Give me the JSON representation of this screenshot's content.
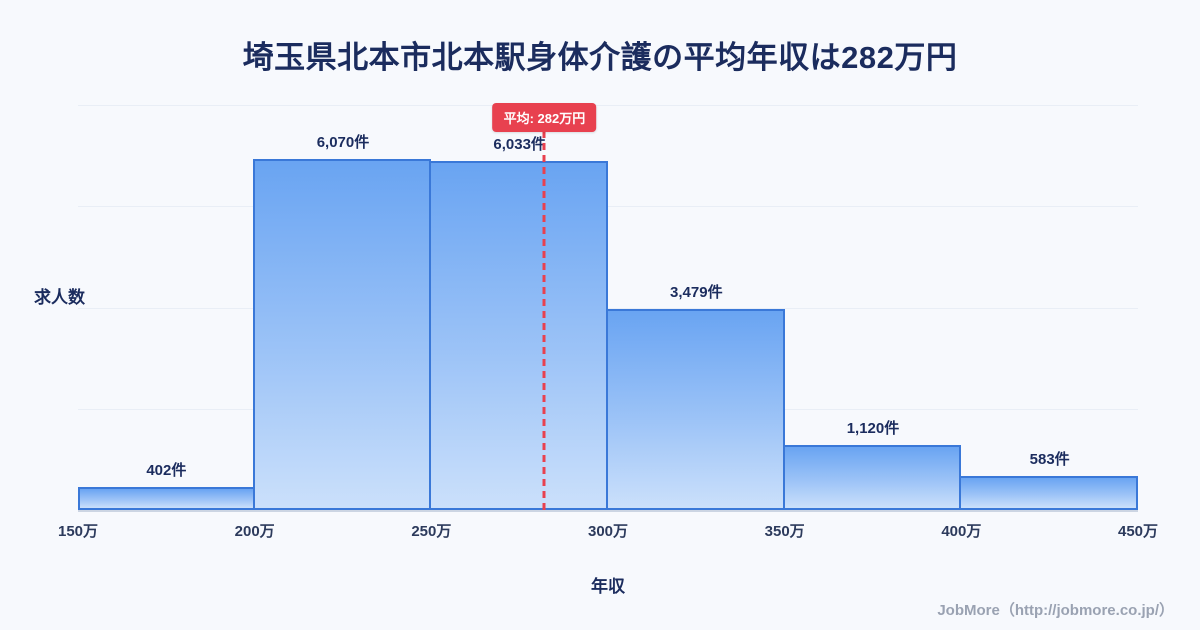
{
  "title": "埼玉県北本市北本駅身体介護の平均年収は282万円",
  "chart_data": {
    "type": "bar",
    "title": "埼玉県北本市北本駅身体介護の平均年収は282万円",
    "xlabel": "年収",
    "ylabel": "求人数",
    "xlim": [
      150,
      450
    ],
    "ylim": [
      0,
      7000
    ],
    "grid": "horizontal-faint",
    "bin_edge_labels": [
      "150万",
      "200万",
      "250万",
      "300万",
      "350万",
      "400万",
      "450万"
    ],
    "categories": [
      "150万-200万",
      "200万-250万",
      "250万-300万",
      "300万-350万",
      "350万-400万",
      "400万-450万"
    ],
    "values": [
      402,
      6070,
      6033,
      3479,
      1120,
      583
    ],
    "value_labels": [
      "402件",
      "6,070件",
      "6,033件",
      "3,479件",
      "1,120件",
      "583件"
    ],
    "average": {
      "value": 282,
      "label": "平均: 282万円"
    },
    "colors": {
      "background": "#f7f9fd",
      "bar_gradient_top": "#69a4f2",
      "bar_gradient_bottom": "#cbe0fb",
      "bar_border": "#3a78d8",
      "average_line": "#e8414f",
      "text": "#1b2c5e",
      "footer_text": "#9aa2b2"
    }
  },
  "footer": {
    "credit": "JobMore（http://jobmore.co.jp/）"
  }
}
